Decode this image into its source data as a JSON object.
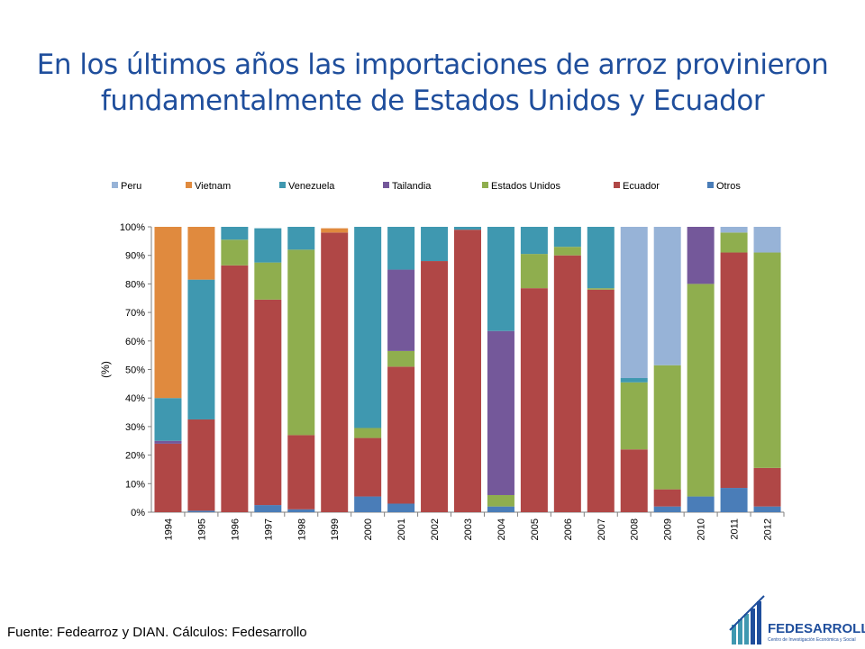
{
  "slide": {
    "title_line1": "En los últimos años las importaciones de arroz provinieron",
    "title_line2": "fundamentalmente de Estados Unidos y Ecuador",
    "source": "Fuente: Fedearroz y DIAN. Cálculos: Fedesarrollo"
  },
  "logo": {
    "name": "FEDESARROLLO",
    "tagline": "Centro de Investigación Económica y Social"
  },
  "colors": {
    "Otros": "#4a7db8",
    "Ecuador": "#b04746",
    "Estados Unidos": "#8fae4e",
    "Tailandia": "#74589a",
    "Venezuela": "#3f98b0",
    "Vietnam": "#e08a3e",
    "Peru": "#97b3d7"
  },
  "chart_data": {
    "type": "bar",
    "stacked": true,
    "ylabel": "(%)",
    "ylim": [
      0,
      100
    ],
    "yticks": [
      "0%",
      "10%",
      "20%",
      "30%",
      "40%",
      "50%",
      "60%",
      "70%",
      "80%",
      "90%",
      "100%"
    ],
    "grid": false,
    "legend_position": "top",
    "legend_order": [
      "Peru",
      "Vietnam",
      "Venezuela",
      "Tailandia",
      "Estados Unidos",
      "Ecuador",
      "Otros"
    ],
    "categories": [
      "1994",
      "1995",
      "1996",
      "1997",
      "1998",
      "1999",
      "2000",
      "2001",
      "2002",
      "2003",
      "2004",
      "2005",
      "2006",
      "2007",
      "2008",
      "2009",
      "2010",
      "2011",
      "2012"
    ],
    "series": [
      {
        "name": "Otros",
        "values": [
          0,
          0.5,
          0,
          2.5,
          1,
          0,
          5.5,
          3,
          0,
          0,
          2,
          0,
          0,
          0,
          0,
          2,
          5.5,
          8.5,
          2
        ]
      },
      {
        "name": "Ecuador",
        "values": [
          24,
          32,
          86.5,
          72,
          26,
          98,
          20.5,
          48,
          88,
          99,
          0,
          78.5,
          90,
          78,
          22,
          6,
          0,
          82.5,
          13.5
        ]
      },
      {
        "name": "Estados Unidos",
        "values": [
          0,
          0,
          9,
          13,
          65,
          0,
          3.5,
          5.5,
          0,
          0,
          4,
          12,
          3,
          0.5,
          23.5,
          43.5,
          74.5,
          7,
          75.5
        ]
      },
      {
        "name": "Tailandia",
        "values": [
          1,
          0,
          0,
          0,
          0,
          0,
          0,
          28.5,
          0,
          0,
          57.5,
          0,
          0,
          0,
          0,
          0,
          20,
          0,
          0
        ]
      },
      {
        "name": "Venezuela",
        "values": [
          15,
          49,
          4.5,
          12,
          8,
          0,
          70.5,
          15,
          12,
          1,
          36.5,
          9.5,
          7,
          21.5,
          1.5,
          0,
          0,
          0,
          0
        ]
      },
      {
        "name": "Vietnam",
        "values": [
          60,
          18.5,
          0,
          0,
          0,
          1.5,
          0,
          0,
          0,
          0,
          0,
          0,
          0,
          0,
          0,
          0,
          0,
          0,
          0
        ]
      },
      {
        "name": "Peru",
        "values": [
          0,
          0,
          0,
          0,
          0,
          0,
          0,
          0,
          0,
          0,
          0,
          0,
          0,
          0,
          53,
          48.5,
          0,
          2,
          9
        ]
      }
    ]
  }
}
